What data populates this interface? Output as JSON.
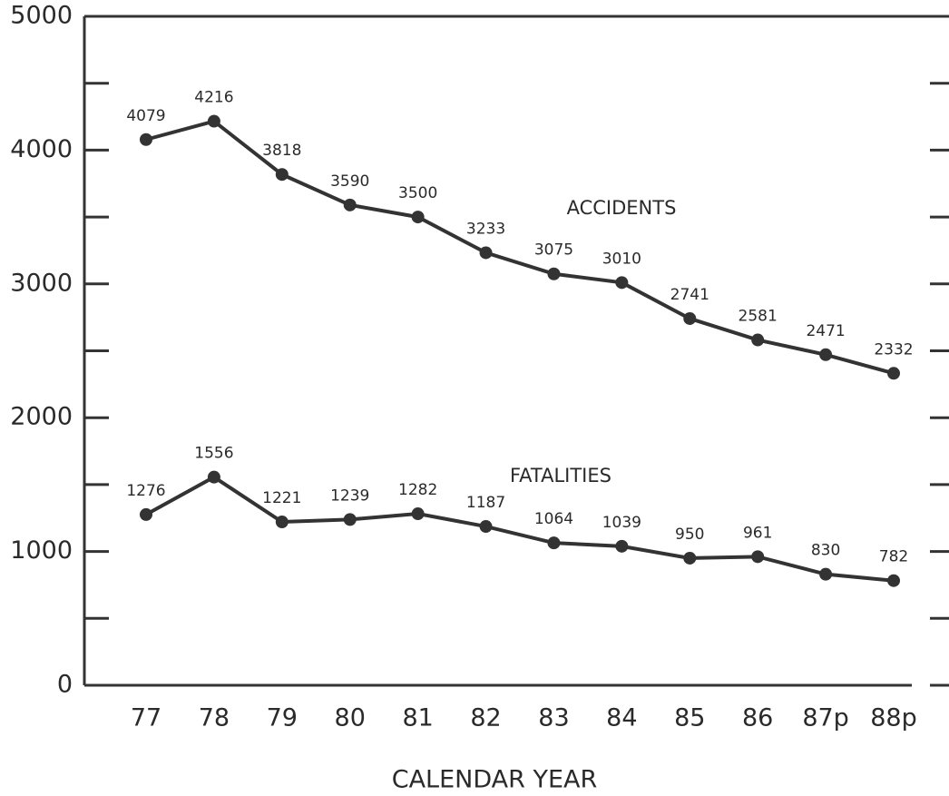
{
  "chart_data": {
    "type": "line",
    "x_label": "CALENDAR YEAR",
    "categories": [
      "77",
      "78",
      "79",
      "80",
      "81",
      "82",
      "83",
      "84",
      "85",
      "86",
      "87p",
      "88p"
    ],
    "series": [
      {
        "name": "ACCIDENTS",
        "color": "#333333",
        "values": [
          4079,
          4216,
          3818,
          3590,
          3500,
          3233,
          3075,
          3010,
          2741,
          2581,
          2471,
          2332
        ]
      },
      {
        "name": "FATALITIES",
        "color": "#333333",
        "values": [
          1276,
          1556,
          1221,
          1239,
          1282,
          1187,
          1064,
          1039,
          950,
          961,
          830,
          782
        ]
      }
    ],
    "ylim": [
      0,
      5000
    ],
    "yticks": [
      0,
      1000,
      2000,
      3000,
      4000,
      5000
    ],
    "minor_yticks": [
      500,
      1500,
      2500,
      3500,
      4500
    ]
  }
}
